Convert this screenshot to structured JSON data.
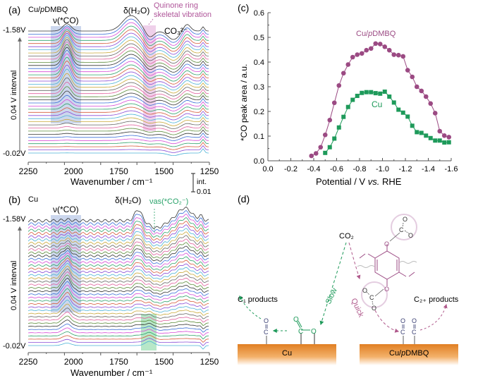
{
  "panel_a": {
    "label": "(a)",
    "sample": "Cu/pDMBQ",
    "sample_prefix": "Cu/",
    "sample_italic": "p",
    "sample_suffix": "DMBQ",
    "top_voltage": "-1.58V",
    "bottom_voltage": "-0.02V",
    "interval_label": "0.04 V interval",
    "annotations": {
      "co": "ν(*CO)",
      "h2o": "δ(H₂O)",
      "quinone_line1": "Quinone ring",
      "quinone_line2": "skeletal vibration",
      "carbonate": "CO₃²⁻"
    },
    "xlabel": "Wavenumber / cm⁻¹",
    "xticks": [
      "2250",
      "2000",
      "1750",
      "1500",
      "1250"
    ]
  },
  "panel_b": {
    "label": "(b)",
    "sample": "Cu",
    "top_voltage": "-1.58V",
    "bottom_voltage": "-0.02V",
    "interval_label": "0.04 V interval",
    "annotations": {
      "co": "ν(*CO)",
      "h2o": "δ(H₂O)",
      "co2": "νas(*CO₂⁻)"
    },
    "xlabel": "Wavenumber / cm⁻¹",
    "xticks": [
      "2250",
      "2000",
      "1750",
      "1500",
      "1250"
    ]
  },
  "scale_bar": {
    "line1": "int.",
    "line2": "0.01"
  },
  "chart_data": [
    {
      "type": "line",
      "title": "(c)",
      "xlabel": "Potential / V vs. RHE",
      "ylabel": "*CO peak area / a.u.",
      "xlim": [
        0.0,
        -1.6
      ],
      "ylim": [
        0.0,
        0.6
      ],
      "xticks": [
        "0.0",
        "-0.2",
        "-0.4",
        "-0.6",
        "-0.8",
        "-1.0",
        "-1.2",
        "-1.4",
        "-1.6"
      ],
      "yticks": [
        "0.0",
        "0.1",
        "0.2",
        "0.3",
        "0.4",
        "0.5",
        "0.6"
      ],
      "grid": false,
      "series": [
        {
          "name": "Cu/pDMBQ",
          "color": "#9b4a83",
          "marker": "circle",
          "x": [
            -0.38,
            -0.42,
            -0.46,
            -0.5,
            -0.54,
            -0.58,
            -0.62,
            -0.66,
            -0.7,
            -0.74,
            -0.78,
            -0.82,
            -0.86,
            -0.9,
            -0.94,
            -0.98,
            -1.02,
            -1.06,
            -1.1,
            -1.14,
            -1.18,
            -1.22,
            -1.26,
            -1.3,
            -1.34,
            -1.38,
            -1.42,
            -1.46,
            -1.5,
            -1.54,
            -1.58
          ],
          "y": [
            0.02,
            0.03,
            0.055,
            0.105,
            0.165,
            0.235,
            0.305,
            0.355,
            0.39,
            0.42,
            0.43,
            0.435,
            0.448,
            0.455,
            0.475,
            0.473,
            0.462,
            0.448,
            0.43,
            0.428,
            0.423,
            0.367,
            0.34,
            0.3,
            0.283,
            0.26,
            0.232,
            0.193,
            0.12,
            0.102,
            0.096
          ]
        },
        {
          "name": "Cu",
          "color": "#1e9a5a",
          "marker": "square",
          "x": [
            -0.5,
            -0.54,
            -0.58,
            -0.62,
            -0.66,
            -0.7,
            -0.74,
            -0.78,
            -0.82,
            -0.86,
            -0.9,
            -0.94,
            -0.98,
            -1.02,
            -1.06,
            -1.1,
            -1.14,
            -1.18,
            -1.22,
            -1.26,
            -1.3,
            -1.34,
            -1.38,
            -1.42,
            -1.46,
            -1.5,
            -1.54,
            -1.58
          ],
          "y": [
            0.032,
            0.055,
            0.09,
            0.135,
            0.178,
            0.218,
            0.247,
            0.263,
            0.275,
            0.278,
            0.278,
            0.274,
            0.272,
            0.28,
            0.26,
            0.236,
            0.207,
            0.195,
            0.179,
            0.142,
            0.116,
            0.113,
            0.102,
            0.092,
            0.082,
            0.082,
            0.074,
            0.075
          ]
        }
      ],
      "legend": [
        {
          "text": "Cu/pDMBQ",
          "prefix": "Cu/",
          "italic": "p",
          "suffix": "DMBQ",
          "placement": "top-center"
        },
        {
          "text": "Cu",
          "placement": "center"
        }
      ]
    }
  ],
  "panel_d": {
    "label": "(d)",
    "co2": "CO₂",
    "c1_products": "C₁ products",
    "c2_products": "C₂₊ products",
    "slow": "Slow",
    "quick": "Quick",
    "cu_surface": "Cu",
    "cudmbq_prefix": "Cu/",
    "cudmbq_italic": "p",
    "cudmbq_suffix": "DMBQ",
    "atom_o": "O",
    "atom_c": "C",
    "colors": {
      "slow": "#1e9a5a",
      "quick": "#b05a8c",
      "surface": "#e8923a",
      "molecule": "#9b4a83",
      "co": "#3a3f73"
    }
  }
}
